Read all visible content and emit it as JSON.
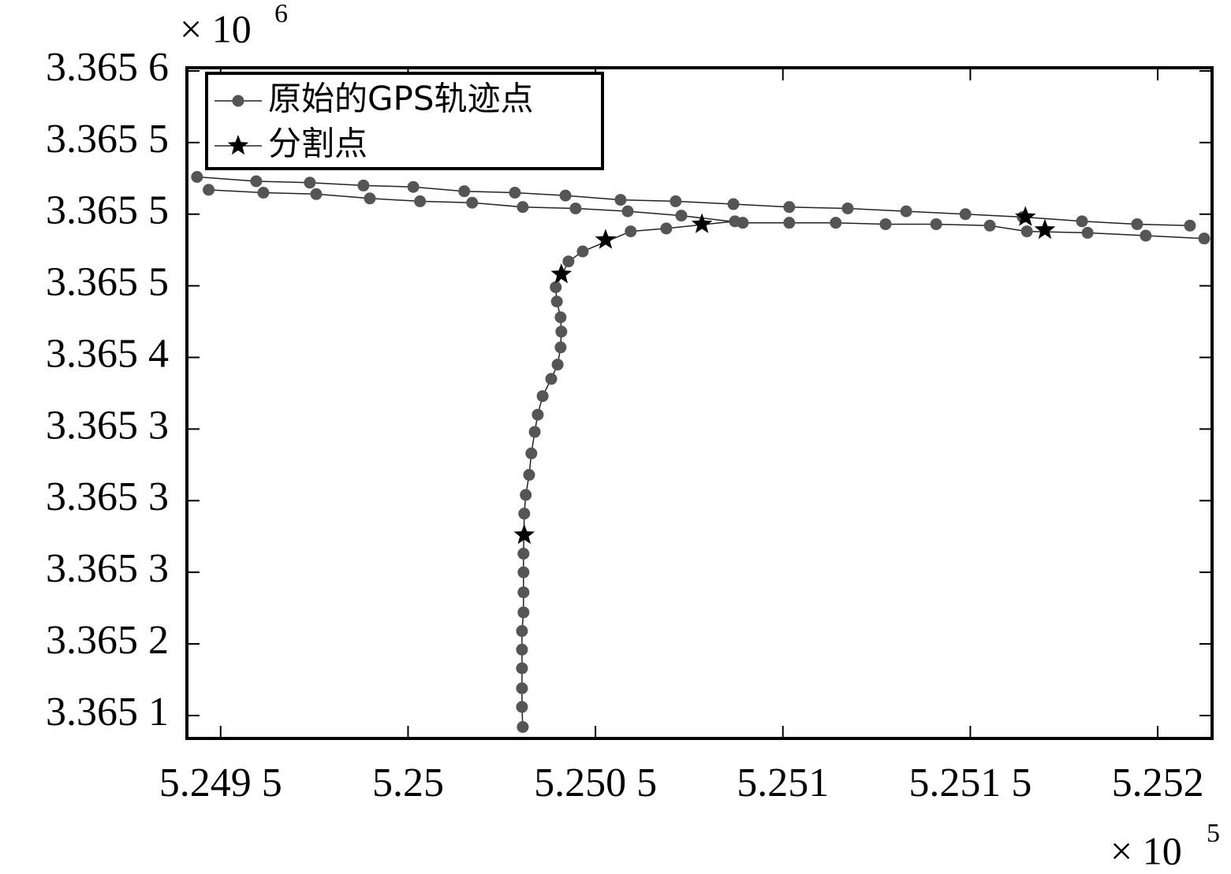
{
  "chart_data": {
    "type": "scatter",
    "x_offset_text": {
      "base": "× 10",
      "exponent": "5"
    },
    "y_offset_text": {
      "base": "× 10",
      "exponent": "6"
    },
    "xlim": [
      5.24941,
      5.252145
    ],
    "ylim": [
      3.365134,
      3.3656022
    ],
    "xticks": [
      {
        "value": 5.2495,
        "label": "5.249 5"
      },
      5.25,
      {
        "value": 5.2505,
        "label": "5.250 5"
      },
      5.251,
      {
        "value": 5.2515,
        "label": "5.251 5"
      },
      5.252
    ],
    "yticks": [
      {
        "value": 3.3656,
        "label": "3.365 6"
      },
      {
        "value": 3.36555,
        "label": "3.365 5"
      },
      {
        "value": 3.3655,
        "label": "3.365 5"
      },
      {
        "value": 3.36545,
        "label": "3.365 5"
      },
      {
        "value": 3.3654,
        "label": "3.365 4"
      },
      {
        "value": 3.36535,
        "label": "3.365 3"
      },
      {
        "value": 3.3653,
        "label": "3.365 3"
      },
      {
        "value": 3.36525,
        "label": "3.365 3"
      },
      {
        "value": 3.3652,
        "label": "3.365 2"
      },
      {
        "value": 3.36515,
        "label": "3.365 1"
      }
    ],
    "legend": "upper left",
    "series": [
      {
        "name": "原始的GPS轨迹点",
        "color": "#555555",
        "marker": "circle",
        "line": true,
        "x": [
          5.249437,
          5.249595,
          5.249738,
          5.249881,
          5.250014,
          5.25015,
          5.250285,
          5.25042,
          5.250567,
          5.250714,
          5.250868,
          5.251017,
          5.251173,
          5.251329,
          5.251487,
          5.25164,
          5.251798,
          5.251945,
          5.252086,
          null,
          5.249468,
          5.249614,
          5.249755,
          5.249898,
          5.250032,
          5.250171,
          5.250306,
          5.250447,
          5.250586,
          5.250729,
          5.250893,
          5.251017,
          5.251141,
          5.251274,
          5.251409,
          5.251552,
          5.251651,
          5.251813,
          5.251968,
          5.252124,
          null,
          5.250306,
          5.250304,
          5.250304,
          5.250304,
          5.250304,
          5.250304,
          5.250308,
          5.250308,
          5.250308,
          5.250308,
          5.25031,
          5.250314,
          5.250323,
          5.250329,
          5.250338,
          5.250346,
          5.250359,
          5.250382,
          5.250399,
          5.250407,
          5.250409,
          5.250407,
          5.250397,
          5.250394,
          5.250428,
          5.250466,
          5.250594,
          5.250689,
          5.250872
        ],
        "values": [
          3.365526,
          3.365523,
          3.365522,
          3.36552,
          3.365519,
          3.365516,
          3.365515,
          3.365513,
          3.36551,
          3.365509,
          3.365507,
          3.365505,
          3.365504,
          3.365502,
          3.3655,
          3.365498,
          3.365495,
          3.365493,
          3.365492,
          null,
          3.365517,
          3.365515,
          3.365514,
          3.365511,
          3.365509,
          3.365508,
          3.365505,
          3.365504,
          3.365502,
          3.365499,
          3.365494,
          3.365494,
          3.365494,
          3.365493,
          3.365493,
          3.365492,
          3.365488,
          3.365487,
          3.365485,
          3.365483,
          null,
          3.365142,
          3.365156,
          3.365169,
          3.365183,
          3.365196,
          3.365209,
          3.365222,
          3.365236,
          3.36525,
          3.365263,
          3.365291,
          3.365304,
          3.365318,
          3.365333,
          3.365348,
          3.36536,
          3.365373,
          3.365385,
          3.365395,
          3.365407,
          3.365418,
          3.365428,
          3.365439,
          3.365449,
          3.365467,
          3.365474,
          3.365488,
          3.36549,
          3.365495
        ]
      },
      {
        "name": "分割点",
        "color": "#000000",
        "marker": "star",
        "line": false,
        "x": [
          5.25031,
          5.250409,
          5.250527,
          5.250784,
          5.251647,
          5.251699
        ],
        "values": [
          3.365276,
          3.365458,
          3.365482,
          3.365493,
          3.365498,
          3.365489
        ]
      }
    ]
  }
}
